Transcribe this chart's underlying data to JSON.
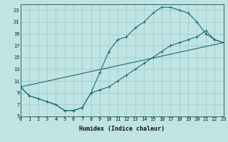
{
  "xlabel": "Humidex (Indice chaleur)",
  "bg_color": "#c0e4e4",
  "grid_color": "#a0cccc",
  "line_color": "#1a6b6b",
  "series": [
    {
      "x": [
        0,
        1,
        2,
        3,
        4,
        5,
        6,
        7,
        8,
        9,
        10,
        11,
        12,
        13,
        14,
        15,
        16,
        17,
        18,
        19,
        20,
        21,
        22,
        23
      ],
      "y": [
        10,
        8.5,
        8,
        7.5,
        7,
        6,
        6,
        6.5,
        9,
        12.5,
        16,
        18,
        18.5,
        20,
        21,
        22.5,
        23.5,
        23.5,
        23,
        22.5,
        21,
        19,
        18,
        17.5
      ],
      "marker": true
    },
    {
      "x": [
        0,
        1,
        2,
        3,
        4,
        5,
        6,
        7,
        8,
        9,
        10,
        11,
        12,
        13,
        14,
        15,
        16,
        17,
        18,
        19,
        20,
        21,
        22,
        23
      ],
      "y": [
        10,
        8.5,
        8,
        7.5,
        7,
        6,
        6,
        6.5,
        9,
        9.5,
        10,
        11,
        12,
        13,
        14,
        15,
        16,
        17,
        17.5,
        18,
        18.5,
        19.5,
        18,
        17.5
      ],
      "marker": true
    },
    {
      "x": [
        0,
        23
      ],
      "y": [
        10,
        17.5
      ],
      "marker": false
    }
  ],
  "xlim": [
    0,
    23
  ],
  "ylim": [
    5,
    24
  ],
  "xticks": [
    0,
    1,
    2,
    3,
    4,
    5,
    6,
    7,
    8,
    9,
    10,
    11,
    12,
    13,
    14,
    15,
    16,
    17,
    18,
    19,
    20,
    21,
    22,
    23
  ],
  "yticks": [
    5,
    7,
    9,
    11,
    13,
    15,
    17,
    19,
    21,
    23
  ],
  "xlabel_fontsize": 6,
  "tick_fontsize": 5
}
